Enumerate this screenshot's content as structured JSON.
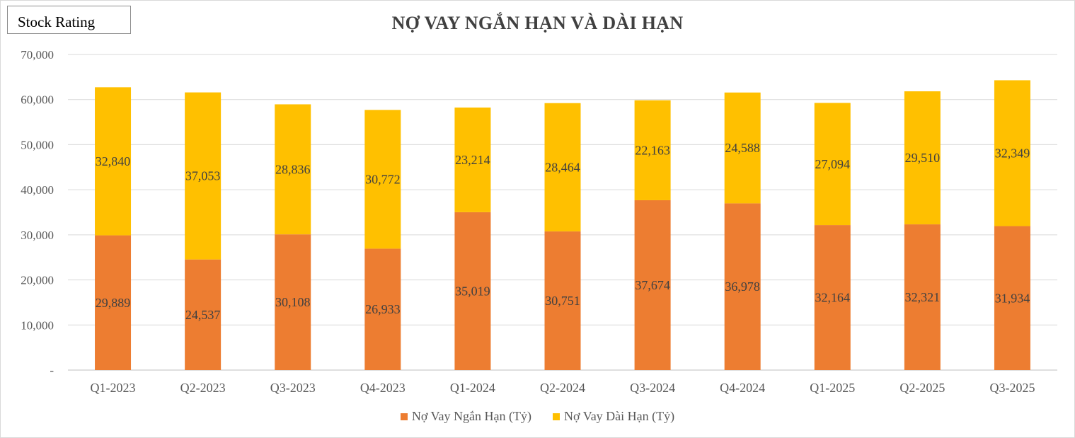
{
  "badge": {
    "label": "Stock Rating"
  },
  "chart_data": {
    "type": "bar",
    "stacked": true,
    "title": "NỢ VAY NGẮN HẠN VÀ DÀI HẠN",
    "categories": [
      "Q1-2023",
      "Q2-2023",
      "Q3-2023",
      "Q4-2023",
      "Q1-2024",
      "Q2-2024",
      "Q3-2024",
      "Q4-2024",
      "Q1-2025",
      "Q2-2025",
      "Q3-2025"
    ],
    "series": [
      {
        "name": "Nợ Vay Ngắn Hạn (Tỷ)",
        "color": "#ed7d31",
        "values": [
          29889,
          24537,
          30108,
          26933,
          35019,
          30751,
          37674,
          36978,
          32164,
          32321,
          31934
        ],
        "labels": [
          "29,889",
          "24,537",
          "30,108",
          "26,933",
          "35,019",
          "30,751",
          "37,674",
          "36,978",
          "32,164",
          "32,321",
          "31,934"
        ]
      },
      {
        "name": "Nợ Vay Dài Hạn (Tỷ)",
        "color": "#ffc000",
        "values": [
          32840,
          37053,
          28836,
          30772,
          23214,
          28464,
          22163,
          24588,
          27094,
          29510,
          32349
        ],
        "labels": [
          "32,840",
          "37,053",
          "28,836",
          "30,772",
          "23,214",
          "28,464",
          "22,163",
          "24,588",
          "27,094",
          "29,510",
          "32,349"
        ]
      }
    ],
    "ylim": [
      0,
      70000
    ],
    "yticks": [
      0,
      10000,
      20000,
      30000,
      40000,
      50000,
      60000,
      70000
    ],
    "ytick_labels": [
      "-",
      "10,000",
      "20,000",
      "30,000",
      "40,000",
      "50,000",
      "60,000",
      "70,000"
    ],
    "grid": true,
    "legend": "bottom-center"
  }
}
